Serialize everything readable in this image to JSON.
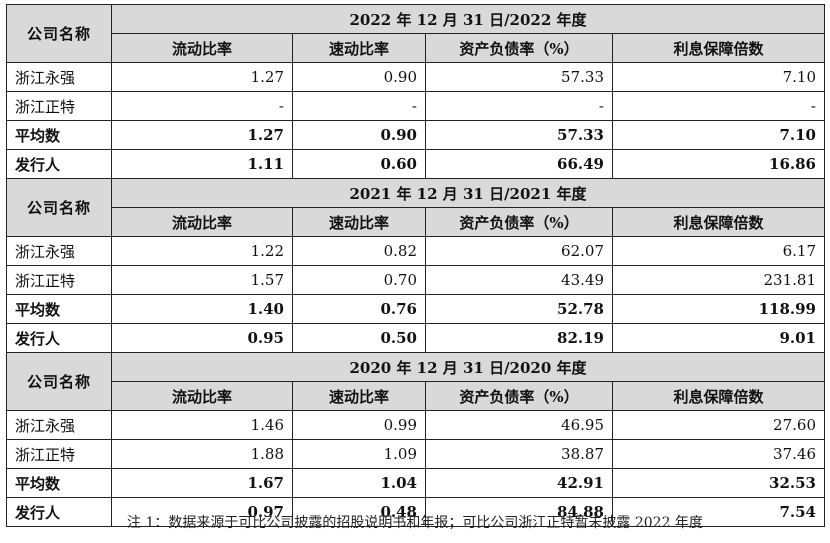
{
  "columns": {
    "company": "公司名称",
    "current_ratio": "流动比率",
    "quick_ratio": "速动比率",
    "debt_ratio": "资产负债率（%）",
    "interest_cover": "利息保障倍数"
  },
  "sections": [
    {
      "period": "2022 年 12 月 31 日/2022 年度",
      "rows": [
        {
          "name": "浙江永强",
          "current": "1.27",
          "quick": "0.90",
          "debt": "57.33",
          "interest": "7.10"
        },
        {
          "name": "浙江正特",
          "current": "-",
          "quick": "-",
          "debt": "-",
          "interest": "-"
        },
        {
          "name": "平均数",
          "current": "1.27",
          "quick": "0.90",
          "debt": "57.33",
          "interest": "7.10"
        },
        {
          "name": "发行人",
          "current": "1.11",
          "quick": "0.60",
          "debt": "66.49",
          "interest": "16.86"
        }
      ]
    },
    {
      "period": "2021 年 12 月 31 日/2021 年度",
      "rows": [
        {
          "name": "浙江永强",
          "current": "1.22",
          "quick": "0.82",
          "debt": "62.07",
          "interest": "6.17"
        },
        {
          "name": "浙江正特",
          "current": "1.57",
          "quick": "0.70",
          "debt": "43.49",
          "interest": "231.81"
        },
        {
          "name": "平均数",
          "current": "1.40",
          "quick": "0.76",
          "debt": "52.78",
          "interest": "118.99"
        },
        {
          "name": "发行人",
          "current": "0.95",
          "quick": "0.50",
          "debt": "82.19",
          "interest": "9.01"
        }
      ]
    },
    {
      "period": "2020 年 12 月 31 日/2020 年度",
      "rows": [
        {
          "name": "浙江永强",
          "current": "1.46",
          "quick": "0.99",
          "debt": "46.95",
          "interest": "27.60"
        },
        {
          "name": "浙江正特",
          "current": "1.88",
          "quick": "1.09",
          "debt": "38.87",
          "interest": "37.46"
        },
        {
          "name": "平均数",
          "current": "1.67",
          "quick": "1.04",
          "debt": "42.91",
          "interest": "32.53"
        },
        {
          "name": "发行人",
          "current": "0.97",
          "quick": "0.48",
          "debt": "84.88",
          "interest": "7.54"
        }
      ]
    }
  ],
  "note": "注 1：数据来源于可比公司披露的招股说明书和年报；可比公司浙江正特暂未披露 2022 年度"
}
